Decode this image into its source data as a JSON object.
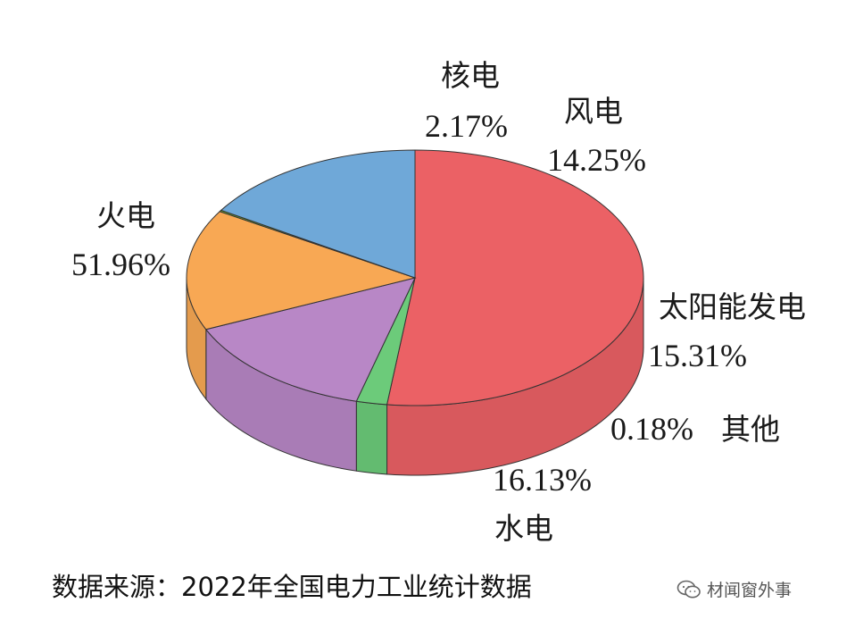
{
  "chart_data": {
    "type": "pie",
    "style": "3d",
    "slices": [
      {
        "name": "火电",
        "value": 51.96,
        "value_label": "51.96%",
        "color": "#EB6165"
      },
      {
        "name": "核电",
        "value": 2.17,
        "value_label": "2.17%",
        "color": "#6CCB7A"
      },
      {
        "name": "风电",
        "value": 14.25,
        "value_label": "14.25%",
        "color": "#B887C6"
      },
      {
        "name": "太阳能发电",
        "value": 15.31,
        "value_label": "15.31%",
        "color": "#F8A854"
      },
      {
        "name": "其他",
        "value": 0.18,
        "value_label": "0.18%",
        "color": "#6FA82F"
      },
      {
        "name": "水电",
        "value": 16.13,
        "value_label": "16.13%",
        "color": "#6FA8D8"
      }
    ]
  },
  "footer": {
    "source": "数据来源：2022年全国电力工业统计数据",
    "watermark": "材闻窗外事",
    "watermark_icon": "wechat-icon"
  }
}
